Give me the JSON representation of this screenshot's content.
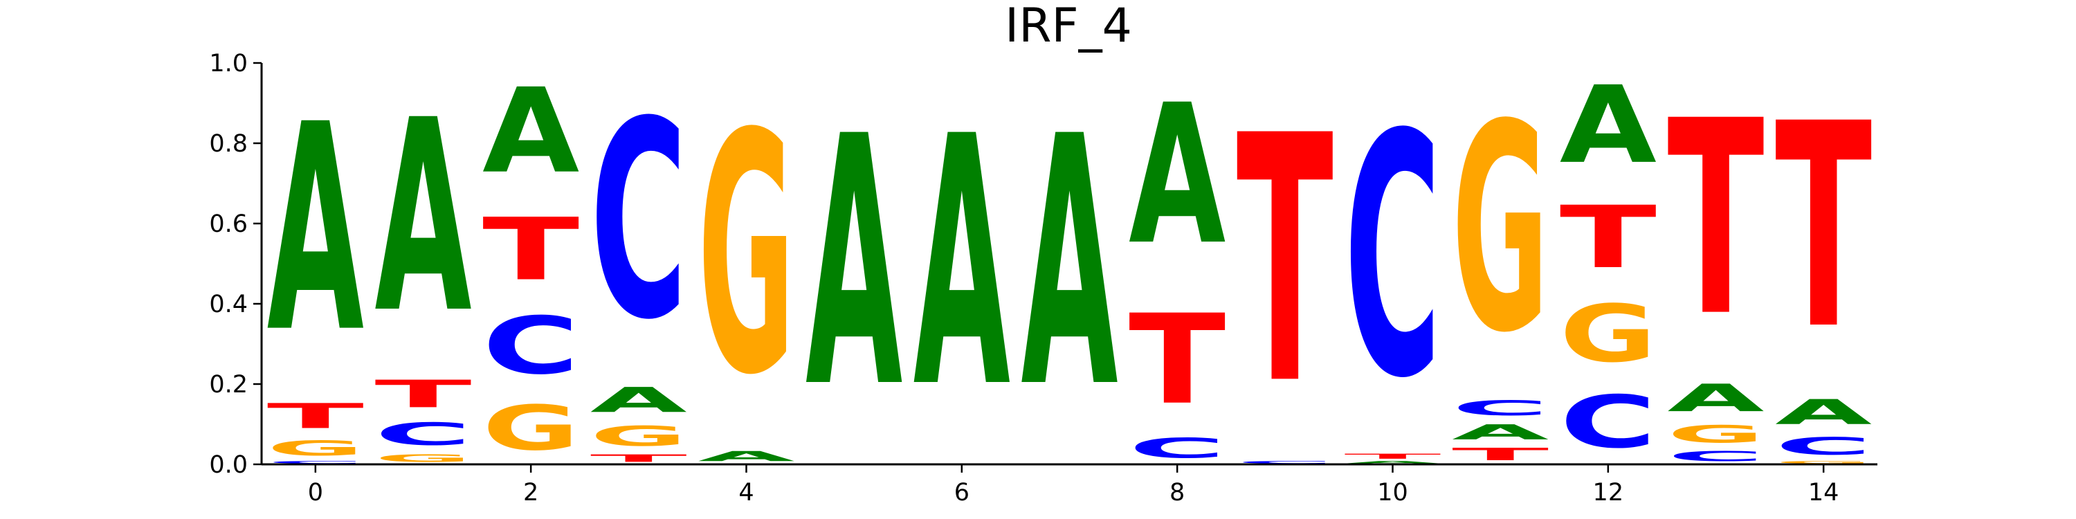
{
  "chart_data": {
    "type": "sequence-logo",
    "title": "IRF_4",
    "xlabel": "",
    "ylabel": "",
    "ylim": [
      0,
      1.0
    ],
    "xlim": [
      -0.5,
      14.5
    ],
    "yticks": [
      0.0,
      0.2,
      0.4,
      0.6,
      0.8,
      1.0
    ],
    "ytick_labels": [
      "0.0",
      "0.2",
      "0.4",
      "0.6",
      "0.8",
      "1.0"
    ],
    "xticks": [
      0,
      2,
      4,
      6,
      8,
      10,
      12,
      14
    ],
    "xtick_labels": [
      "0",
      "2",
      "4",
      "6",
      "8",
      "10",
      "12",
      "14"
    ],
    "colors": {
      "A": "#008000",
      "C": "#0000ff",
      "G": "#ffa500",
      "T": "#ff0000"
    },
    "positions": [
      {
        "position": 0,
        "letters": [
          {
            "base": "C",
            "height": 0.01
          },
          {
            "base": "G",
            "height": 0.06
          },
          {
            "base": "T",
            "height": 0.1
          },
          {
            "base": "A",
            "height": 0.83
          }
        ]
      },
      {
        "position": 1,
        "letters": [
          {
            "base": "G",
            "height": 0.03
          },
          {
            "base": "C",
            "height": 0.09
          },
          {
            "base": "T",
            "height": 0.11
          },
          {
            "base": "A",
            "height": 0.77
          }
        ]
      },
      {
        "position": 2,
        "letters": [
          {
            "base": "G",
            "height": 0.18
          },
          {
            "base": "C",
            "height": 0.23
          },
          {
            "base": "T",
            "height": 0.25
          },
          {
            "base": "A",
            "height": 0.34
          }
        ]
      },
      {
        "position": 3,
        "letters": [
          {
            "base": "T",
            "height": 0.03
          },
          {
            "base": "G",
            "height": 0.08
          },
          {
            "base": "A",
            "height": 0.1
          },
          {
            "base": "C",
            "height": 0.79
          }
        ]
      },
      {
        "position": 4,
        "letters": [
          {
            "base": "A",
            "height": 0.04
          },
          {
            "base": "G",
            "height": 0.96
          }
        ]
      },
      {
        "position": 5,
        "letters": [
          {
            "base": "A",
            "height": 1.0
          }
        ]
      },
      {
        "position": 6,
        "letters": [
          {
            "base": "A",
            "height": 1.0
          }
        ]
      },
      {
        "position": 7,
        "letters": [
          {
            "base": "A",
            "height": 1.0
          }
        ]
      },
      {
        "position": 8,
        "letters": [
          {
            "base": "C",
            "height": 0.08
          },
          {
            "base": "T",
            "height": 0.36
          },
          {
            "base": "A",
            "height": 0.56
          }
        ]
      },
      {
        "position": 9,
        "letters": [
          {
            "base": "C",
            "height": 0.01
          },
          {
            "base": "T",
            "height": 0.99
          }
        ]
      },
      {
        "position": 10,
        "letters": [
          {
            "base": "A",
            "height": 0.01
          },
          {
            "base": "T",
            "height": 0.02
          },
          {
            "base": "C",
            "height": 0.97
          }
        ]
      },
      {
        "position": 11,
        "letters": [
          {
            "base": "T",
            "height": 0.05
          },
          {
            "base": "A",
            "height": 0.06
          },
          {
            "base": "C",
            "height": 0.06
          },
          {
            "base": "G",
            "height": 0.83
          }
        ]
      },
      {
        "position": 12,
        "letters": [
          {
            "base": "C",
            "height": 0.21
          },
          {
            "base": "G",
            "height": 0.23
          },
          {
            "base": "T",
            "height": 0.25
          },
          {
            "base": "A",
            "height": 0.31
          }
        ]
      },
      {
        "position": 13,
        "letters": [
          {
            "base": "C",
            "height": 0.04
          },
          {
            "base": "G",
            "height": 0.07
          },
          {
            "base": "A",
            "height": 0.11
          },
          {
            "base": "T",
            "height": 0.78
          }
        ]
      },
      {
        "position": 14,
        "letters": [
          {
            "base": "G",
            "height": 0.01
          },
          {
            "base": "C",
            "height": 0.07
          },
          {
            "base": "A",
            "height": 0.1
          },
          {
            "base": "T",
            "height": 0.82
          }
        ]
      }
    ]
  }
}
